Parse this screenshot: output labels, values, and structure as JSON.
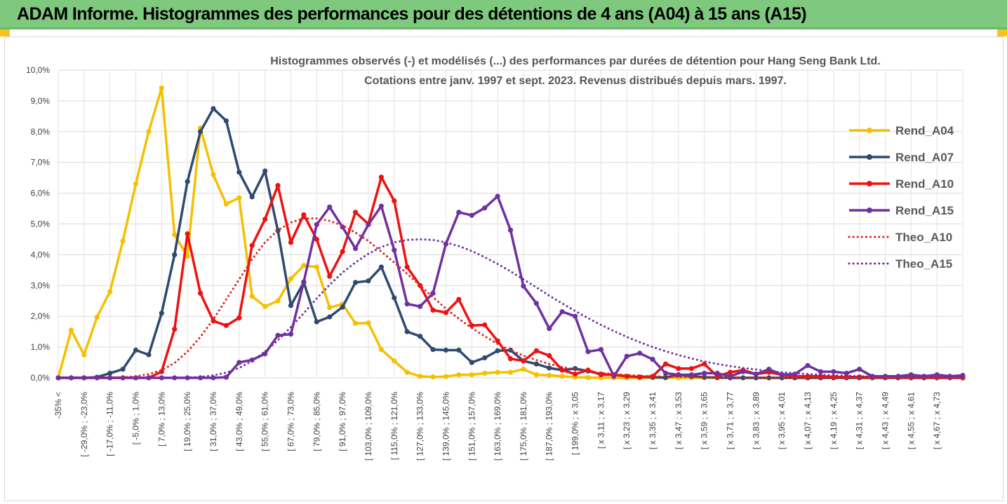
{
  "header": {
    "title": "ADAM Informe. Histogrammes des performances pour des détentions de 4 ans (A04) à 15 ans (A15)",
    "background_color": "#7fc97f",
    "corner_color": "#f5c518"
  },
  "chart_data": {
    "type": "line",
    "title": "Histogrammes observés (-) et modélisés (...)  des performances par durées de détention pour Hang Seng Bank Ltd.",
    "subtitle": "Cotations entre janv. 1997 et sept. 2023. Revenus distribués depuis mars. 1997.",
    "ylim": [
      0,
      10
    ],
    "yticks": [
      "0,0%",
      "1,0%",
      "2,0%",
      "3,0%",
      "4,0%",
      "5,0%",
      "6,0%",
      "7,0%",
      "8,0%",
      "9,0%",
      "10,0%"
    ],
    "x_count": 71,
    "xtick_labels": [
      "-35% <",
      "[ -29,0% ; -23,0%",
      "[ -17,0% ; -11,0%",
      "[ -5,0% ; 1,0%",
      "[ 7,0% ; 13,0%",
      "[ 19,0% ; 25,0%",
      "[ 31,0% ; 37,0%",
      "[ 43,0% ; 49,0%",
      "[ 55,0% ; 61,0%",
      "[ 67,0% ; 73,0%",
      "[ 79,0% ; 85,0%",
      "[ 91,0% ; 97,0%",
      "[ 103,0% ; 109,0%",
      "[ 115,0% ; 121,0%",
      "[ 127,0% ; 133,0%",
      "[ 139,0% ; 145,0%",
      "[ 151,0% ; 157,0%",
      "[ 163,0% ; 169,0%",
      "[ 175,0% ; 181,0%",
      "[ 187,0% ; 193,0%",
      "[ 199,0% ; x 3,05",
      "[ x 3,11 ; x 3,17",
      "[ x 3,23 ; x 3,29",
      "[ x 3,35 ; x 3,41",
      "[ x 3,47 ; x 3,53",
      "[ x 3,59 ; x 3,65",
      "[ x 3,71 ; x 3,77",
      "[ x 3,83 ; x 3,89",
      "[ x 3,95 ; x 4,01",
      "[ x 4,07 ; x 4,13",
      "[ x 4,19 ; x 4,25",
      "[ x 4,31 ; x 4,37",
      "[ x 4,43 ; x 4,49",
      "[ x 4,55 ; x 4,61",
      "[ x 4,67 ; x 4,73"
    ],
    "xtick_every": 2,
    "legend_position": "right",
    "grid": true,
    "series": [
      {
        "name": "Rend_A04",
        "style": "solid",
        "color": "#f5c000",
        "values": [
          0,
          1.55,
          0.75,
          1.97,
          2.8,
          4.45,
          6.3,
          8.0,
          9.42,
          4.65,
          3.95,
          8.12,
          6.6,
          5.65,
          5.85,
          2.65,
          2.32,
          2.5,
          3.22,
          3.65,
          3.6,
          2.28,
          2.4,
          1.77,
          1.78,
          0.92,
          0.55,
          0.18,
          0.05,
          0.03,
          0.04,
          0.1,
          0.1,
          0.15,
          0.18,
          0.18,
          0.28,
          0.1,
          0.08,
          0.05,
          0.02,
          0.01,
          0,
          0,
          0,
          0,
          0,
          0,
          0,
          0,
          0,
          0,
          0,
          0,
          0,
          0,
          0,
          0,
          0,
          0,
          0,
          0,
          0,
          0,
          0,
          0,
          0,
          0,
          0,
          0,
          0
        ]
      },
      {
        "name": "Rend_A07",
        "style": "solid",
        "color": "#2e4a70",
        "values": [
          0,
          0,
          0,
          0.02,
          0.15,
          0.28,
          0.9,
          0.75,
          2.1,
          4.0,
          6.38,
          8.0,
          8.75,
          8.35,
          6.68,
          5.88,
          6.72,
          4.78,
          2.35,
          3.1,
          1.82,
          1.98,
          2.3,
          3.1,
          3.15,
          3.6,
          2.6,
          1.5,
          1.35,
          0.92,
          0.9,
          0.9,
          0.5,
          0.65,
          0.88,
          0.9,
          0.55,
          0.45,
          0.32,
          0.25,
          0.3,
          0.22,
          0.12,
          0.1,
          0.05,
          0.03,
          0.02,
          0.01,
          0.1,
          0.05,
          0.02,
          0.01,
          0,
          0,
          0,
          0,
          0,
          0,
          0,
          0,
          0,
          0,
          0,
          0,
          0,
          0,
          0,
          0,
          0,
          0,
          0
        ]
      },
      {
        "name": "Rend_A10",
        "style": "solid",
        "color": "#ee1111",
        "values": [
          0,
          0,
          0,
          0,
          0,
          0,
          0,
          0,
          0.2,
          1.58,
          4.68,
          2.75,
          1.85,
          1.7,
          1.95,
          4.3,
          5.15,
          6.25,
          4.4,
          5.3,
          4.5,
          3.3,
          4.1,
          5.38,
          5.0,
          6.52,
          5.75,
          3.6,
          3.0,
          2.2,
          2.12,
          2.55,
          1.7,
          1.72,
          1.2,
          0.62,
          0.55,
          0.88,
          0.72,
          0.25,
          0.12,
          0.25,
          0.1,
          0.1,
          0.05,
          0.02,
          0.05,
          0.45,
          0.3,
          0.3,
          0.45,
          0.05,
          0.18,
          0.25,
          0.12,
          0.18,
          0.1,
          0.05,
          0.05,
          0.05,
          0.03,
          0.03,
          0.03,
          0.02,
          0.02,
          0.02,
          0.02,
          0.01,
          0.01,
          0.01,
          0
        ]
      },
      {
        "name": "Rend_A15",
        "style": "solid",
        "color": "#7030a0",
        "values": [
          0,
          0,
          0,
          0,
          0,
          0,
          0,
          0,
          0,
          0,
          0,
          0,
          0,
          0.02,
          0.5,
          0.58,
          0.78,
          1.38,
          1.42,
          3.12,
          4.98,
          5.55,
          4.9,
          4.2,
          4.98,
          5.58,
          4.15,
          2.4,
          2.32,
          2.75,
          4.35,
          5.38,
          5.28,
          5.52,
          5.9,
          4.8,
          2.98,
          2.42,
          1.6,
          2.15,
          2.0,
          0.85,
          0.92,
          0.05,
          0.7,
          0.8,
          0.6,
          0.15,
          0.1,
          0.1,
          0.15,
          0.15,
          0.05,
          0.2,
          0.12,
          0.28,
          0.1,
          0.12,
          0.4,
          0.2,
          0.2,
          0.15,
          0.28,
          0.05,
          0.05,
          0.05,
          0.1,
          0.05,
          0.1,
          0.05,
          0.08
        ]
      },
      {
        "name": "Theo_A10",
        "style": "dotted",
        "color": "#dd2222",
        "values": [
          0,
          0,
          0,
          0,
          0.01,
          0.02,
          0.05,
          0.12,
          0.25,
          0.48,
          0.85,
          1.33,
          1.9,
          2.55,
          3.2,
          3.85,
          4.4,
          4.8,
          5.05,
          5.18,
          5.18,
          5.1,
          4.95,
          4.72,
          4.45,
          4.1,
          3.75,
          3.38,
          3.0,
          2.62,
          2.25,
          1.92,
          1.62,
          1.35,
          1.1,
          0.9,
          0.72,
          0.58,
          0.45,
          0.35,
          0.27,
          0.21,
          0.16,
          0.12,
          0.09,
          0.07,
          0.05,
          0.04,
          0.03,
          0.02,
          0.02,
          0.01,
          0.01,
          0.01,
          0,
          0,
          0,
          0,
          0,
          0,
          0,
          0,
          0,
          0,
          0,
          0,
          0,
          0,
          0,
          0,
          0
        ]
      },
      {
        "name": "Theo_A15",
        "style": "dotted",
        "color": "#7030a0",
        "values": [
          0,
          0,
          0,
          0,
          0,
          0,
          0,
          0,
          0,
          0,
          0.01,
          0.03,
          0.08,
          0.17,
          0.32,
          0.55,
          0.85,
          1.22,
          1.65,
          2.1,
          2.58,
          3.02,
          3.42,
          3.75,
          4.03,
          4.25,
          4.4,
          4.48,
          4.5,
          4.48,
          4.4,
          4.28,
          4.12,
          3.92,
          3.7,
          3.46,
          3.2,
          2.94,
          2.67,
          2.42,
          2.17,
          1.94,
          1.72,
          1.52,
          1.33,
          1.16,
          1.0,
          0.86,
          0.74,
          0.63,
          0.53,
          0.45,
          0.38,
          0.32,
          0.27,
          0.22,
          0.18,
          0.15,
          0.12,
          0.1,
          0.08,
          0.07,
          0.05,
          0.04,
          0.04,
          0.03,
          0.02,
          0.02,
          0.01,
          0.01,
          0.01
        ]
      }
    ]
  }
}
